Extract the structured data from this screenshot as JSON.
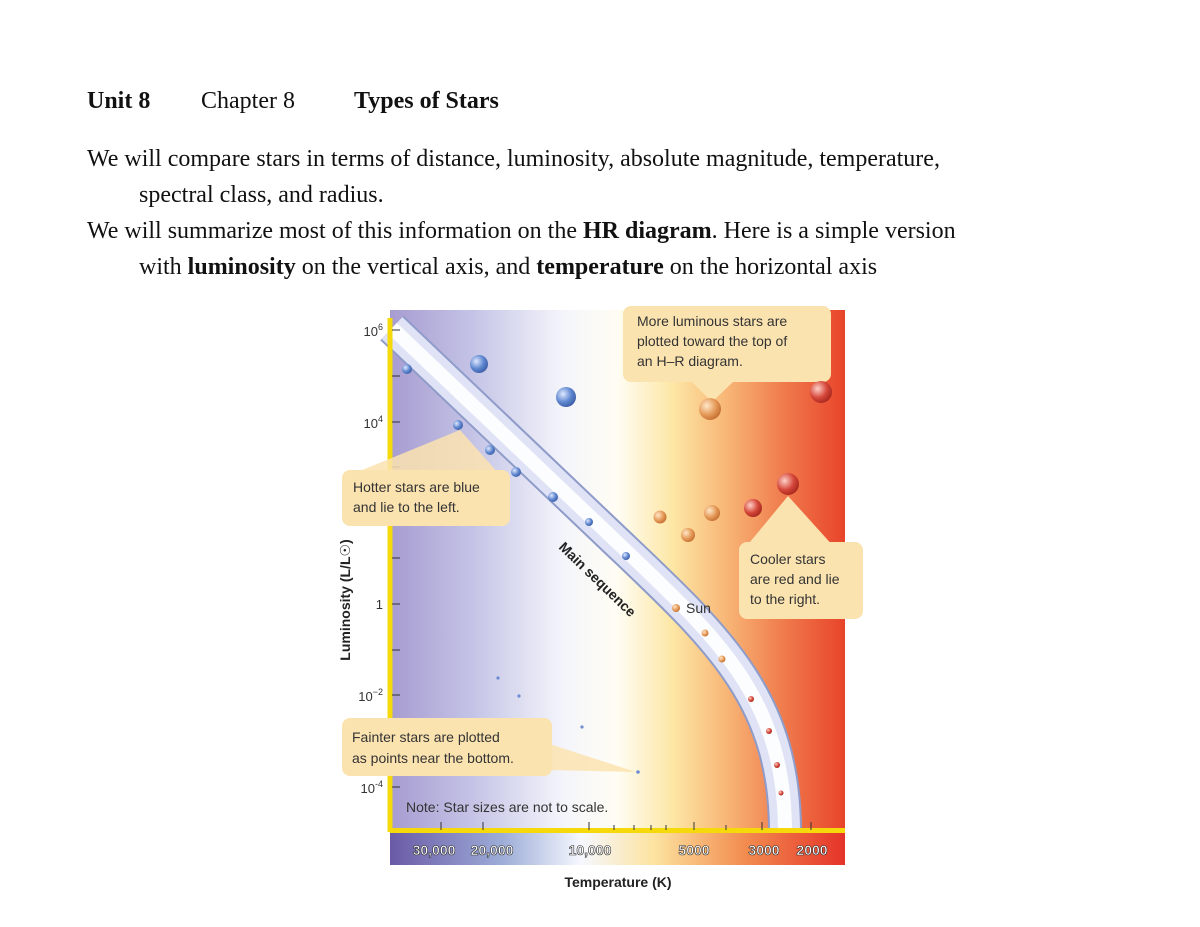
{
  "header": {
    "unit": "Unit 8",
    "chapter": "Chapter 8",
    "title": "Types of Stars"
  },
  "paragraph1": {
    "line1": "We will compare stars in terms of distance, luminosity, absolute magnitude, temperature,",
    "line2": "spectral class, and radius."
  },
  "paragraph2": {
    "line1_pre": "We will summarize most of this information on the ",
    "line1_bold": "HR diagram",
    "line1_post": ".  Here is a simple version",
    "line2_pre": "with ",
    "line2_bold1": "luminosity",
    "line2_mid": " on the vertical axis, and ",
    "line2_bold2": "temperature",
    "line2_post": " on the horizontal axis"
  },
  "diagram": {
    "y_axis_label": "Luminosity (L/L☉)",
    "y_ticks": [
      {
        "base": "10",
        "exp": "6"
      },
      {
        "base": "10",
        "exp": "4"
      },
      {
        "base": "1",
        "exp": ""
      },
      {
        "base": "10",
        "exp": "−2"
      },
      {
        "base": "10",
        "exp": "-4"
      }
    ],
    "x_axis_label": "Temperature (K)",
    "x_ticks": [
      "30,000",
      "20,000",
      "10,000",
      "5000",
      "3000",
      "2000"
    ],
    "main_sequence_label": "Main sequence",
    "sun_label": "Sun",
    "callouts": {
      "luminous": [
        "More luminous stars are",
        "plotted toward the top of",
        "an H–R diagram."
      ],
      "hotter": [
        "Hotter stars are blue",
        "and lie to the left."
      ],
      "cooler": [
        "Cooler stars",
        "are red and lie",
        "to the right."
      ],
      "fainter": [
        "Fainter stars are plotted",
        "as points near the bottom."
      ]
    },
    "note": "Note: Star sizes are not to scale.",
    "colors": {
      "hot": "#7d6fb5",
      "cool": "#e8442a",
      "callout": "#fbe3b0",
      "axis_bar": "#f5d90a"
    }
  }
}
